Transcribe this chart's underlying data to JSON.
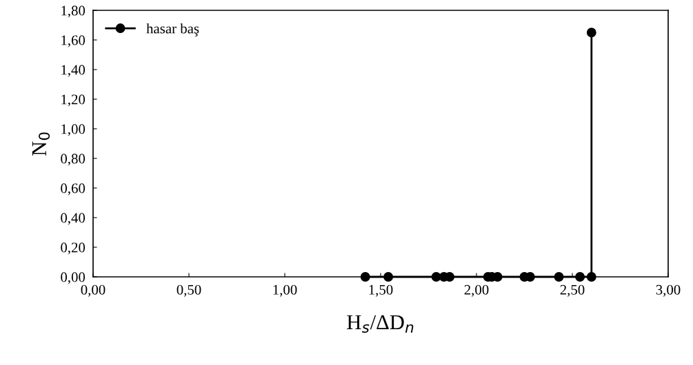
{
  "chart_data": {
    "type": "line",
    "xlabel": "H$_{s}$/ΔD$_{n}$",
    "ylabel": "N$_{0}$",
    "xlim": [
      0,
      3
    ],
    "ylim": [
      0,
      1.8
    ],
    "xticks": [
      {
        "value": 0,
        "label": "0,00"
      },
      {
        "value": 0.5,
        "label": "0,50"
      },
      {
        "value": 1,
        "label": "1,00"
      },
      {
        "value": 1.5,
        "label": "1,50"
      },
      {
        "value": 2,
        "label": "2,00"
      },
      {
        "value": 2.5,
        "label": "2,50"
      },
      {
        "value": 3,
        "label": "3,00"
      }
    ],
    "yticks": [
      {
        "value": 0,
        "label": "0,00"
      },
      {
        "value": 0.2,
        "label": "0,20"
      },
      {
        "value": 0.4,
        "label": "0,40"
      },
      {
        "value": 0.6,
        "label": "0,60"
      },
      {
        "value": 0.8,
        "label": "0,80"
      },
      {
        "value": 1,
        "label": "1,00"
      },
      {
        "value": 1.2,
        "label": "1,20"
      },
      {
        "value": 1.4,
        "label": "1,40"
      },
      {
        "value": 1.6,
        "label": "1,60"
      },
      {
        "value": 1.8,
        "label": "1,80"
      }
    ],
    "series": [
      {
        "name": "hasar baş",
        "color": "#000000",
        "x": [
          1.42,
          1.54,
          1.79,
          1.83,
          1.86,
          2.06,
          2.08,
          2.11,
          2.25,
          2.28,
          2.43,
          2.54,
          2.6,
          2.6
        ],
        "values": [
          0,
          0,
          0,
          0,
          0,
          0,
          0,
          0,
          0,
          0,
          0,
          0,
          0,
          1.65
        ]
      }
    ],
    "marker": "circle",
    "line_style": "solid",
    "grid": false,
    "legend": "top left"
  }
}
